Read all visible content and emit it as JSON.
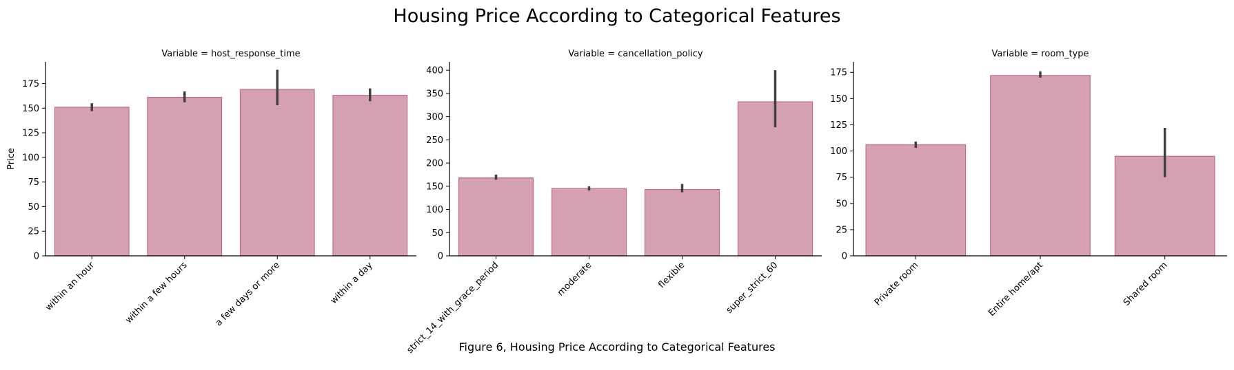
{
  "figure": {
    "title": "Housing Price According to Categorical Features",
    "caption": "Figure 6, Housing Price According to Categorical Features",
    "bar_color": "#d4a0b2",
    "bar_edge_color": "#c4698c",
    "errorbar_color": "#404040"
  },
  "chart_data": [
    {
      "type": "bar",
      "title": "Variable = host_response_time",
      "ylabel": "Price",
      "xlabel": "",
      "ylim": [
        0,
        197
      ],
      "yticks": [
        0,
        25,
        50,
        75,
        100,
        125,
        150,
        175
      ],
      "categories": [
        "within an hour",
        "within a few hours",
        "a few days or more",
        "within a day"
      ],
      "values": [
        151,
        161,
        169,
        163
      ],
      "error_low": [
        147,
        156,
        153,
        157
      ],
      "error_high": [
        155,
        167,
        189,
        170
      ],
      "grid": false
    },
    {
      "type": "bar",
      "title": "Variable = cancellation_policy",
      "ylabel": "",
      "xlabel": "",
      "ylim": [
        0,
        418
      ],
      "yticks": [
        0,
        50,
        100,
        150,
        200,
        250,
        300,
        350,
        400
      ],
      "categories": [
        "strict_14_with_grace_period",
        "moderate",
        "flexible",
        "super_strict_60"
      ],
      "values": [
        168,
        145,
        143,
        332
      ],
      "error_low": [
        164,
        141,
        137,
        277
      ],
      "error_high": [
        175,
        150,
        155,
        400
      ],
      "grid": false
    },
    {
      "type": "bar",
      "title": "Variable = room_type",
      "ylabel": "",
      "xlabel": "",
      "ylim": [
        0,
        185
      ],
      "yticks": [
        0,
        25,
        50,
        75,
        100,
        125,
        150,
        175
      ],
      "categories": [
        "Private room",
        "Entire home/apt",
        "Shared room"
      ],
      "values": [
        106,
        172,
        95
      ],
      "error_low": [
        103,
        170,
        75
      ],
      "error_high": [
        109,
        176,
        122
      ],
      "grid": false
    }
  ]
}
